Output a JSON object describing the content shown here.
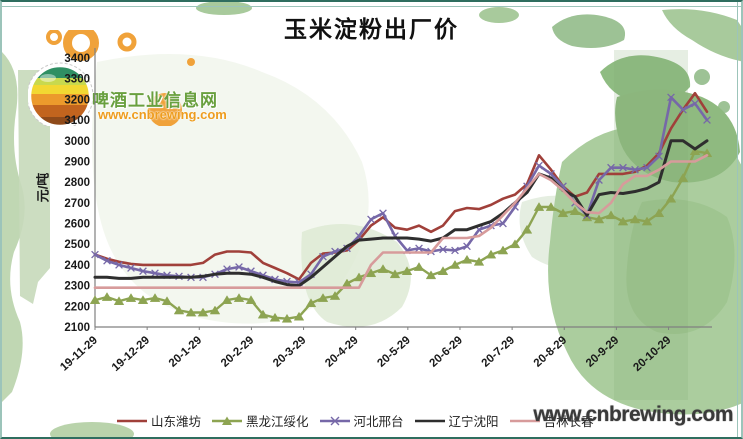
{
  "logo": {
    "site_name": "啤酒工业信息网",
    "site_url": "www.cnbrewing.com"
  },
  "watermark": "www.cnbrewing.com",
  "y_axis": {
    "unit_label": "元/吨",
    "ticks": [
      3400,
      3300,
      3200,
      3100,
      3000,
      2900,
      2800,
      2700,
      2600,
      2500,
      2400,
      2300,
      2200,
      2100
    ]
  },
  "x_axis": {
    "labels": [
      "19-11-29",
      "19-12-29",
      "20-1-29",
      "20-2-29",
      "20-3-29",
      "20-4-29",
      "20-5-29",
      "20-6-29",
      "20-7-29",
      "20-8-29",
      "20-9-29",
      "20-10-29"
    ]
  },
  "chart_data": {
    "type": "line",
    "title": "玉米淀粉出厂价",
    "ylabel": "元/吨",
    "ylim": [
      2100,
      3400
    ],
    "y_tick_step": 100,
    "grid": false,
    "legend_position": "bottom",
    "frequency": "weekly",
    "x_tick_labels": [
      "19-11-29",
      "19-12-29",
      "20-1-29",
      "20-2-29",
      "20-3-29",
      "20-4-29",
      "20-5-29",
      "20-6-29",
      "20-7-29",
      "20-8-29",
      "20-9-29",
      "20-10-29"
    ],
    "series": [
      {
        "name": "山东潍坊",
        "color": "#A0403A",
        "marker": "none",
        "values": [
          2450,
          2430,
          2415,
          2405,
          2400,
          2400,
          2400,
          2400,
          2400,
          2410,
          2450,
          2465,
          2465,
          2460,
          2410,
          2385,
          2360,
          2330,
          2410,
          2455,
          2460,
          2470,
          2520,
          2590,
          2630,
          2580,
          2570,
          2590,
          2560,
          2590,
          2660,
          2675,
          2670,
          2690,
          2720,
          2740,
          2790,
          2930,
          2860,
          2780,
          2730,
          2750,
          2840,
          2840,
          2840,
          2850,
          2880,
          2940,
          3060,
          3150,
          3230,
          3140
        ]
      },
      {
        "name": "黑龙江绥化",
        "color": "#8DA452",
        "marker": "triangle",
        "values": [
          2230,
          2245,
          2225,
          2240,
          2230,
          2240,
          2225,
          2180,
          2170,
          2170,
          2180,
          2230,
          2240,
          2230,
          2160,
          2145,
          2140,
          2150,
          2215,
          2240,
          2250,
          2310,
          2340,
          2360,
          2380,
          2355,
          2370,
          2390,
          2350,
          2370,
          2400,
          2425,
          2415,
          2450,
          2470,
          2500,
          2570,
          2680,
          2680,
          2650,
          2660,
          2630,
          2620,
          2640,
          2610,
          2620,
          2610,
          2650,
          2720,
          2820,
          2950,
          2940
        ]
      },
      {
        "name": "河北邢台",
        "color": "#7668A8",
        "marker": "x",
        "values": [
          2450,
          2420,
          2400,
          2385,
          2370,
          2360,
          2350,
          2345,
          2340,
          2340,
          2355,
          2380,
          2390,
          2370,
          2350,
          2330,
          2320,
          2315,
          2355,
          2440,
          2465,
          2480,
          2540,
          2620,
          2650,
          2540,
          2470,
          2480,
          2465,
          2475,
          2470,
          2490,
          2570,
          2590,
          2600,
          2680,
          2780,
          2880,
          2840,
          2780,
          2700,
          2640,
          2810,
          2870,
          2870,
          2860,
          2870,
          2925,
          3210,
          3150,
          3180,
          3100
        ]
      },
      {
        "name": "辽宁沈阳",
        "color": "#2E2E2E",
        "marker": "none",
        "values": [
          2340,
          2340,
          2335,
          2335,
          2340,
          2340,
          2340,
          2340,
          2340,
          2345,
          2355,
          2360,
          2360,
          2355,
          2340,
          2320,
          2305,
          2300,
          2340,
          2390,
          2440,
          2490,
          2520,
          2525,
          2530,
          2530,
          2530,
          2525,
          2515,
          2530,
          2570,
          2570,
          2590,
          2610,
          2650,
          2700,
          2750,
          2840,
          2820,
          2760,
          2730,
          2640,
          2740,
          2750,
          2745,
          2755,
          2770,
          2800,
          3000,
          3000,
          2960,
          3000
        ]
      },
      {
        "name": "吉林长春",
        "color": "#D79B9B",
        "marker": "none",
        "values": [
          2290,
          2290,
          2290,
          2290,
          2290,
          2290,
          2290,
          2290,
          2290,
          2290,
          2290,
          2290,
          2290,
          2290,
          2290,
          2290,
          2290,
          2290,
          2290,
          2290,
          2290,
          2290,
          2290,
          2400,
          2460,
          2460,
          2460,
          2460,
          2460,
          2530,
          2530,
          2530,
          2540,
          2580,
          2640,
          2700,
          2770,
          2840,
          2810,
          2760,
          2700,
          2655,
          2650,
          2700,
          2790,
          2830,
          2830,
          2860,
          2900,
          2900,
          2900,
          2930
        ]
      }
    ]
  }
}
